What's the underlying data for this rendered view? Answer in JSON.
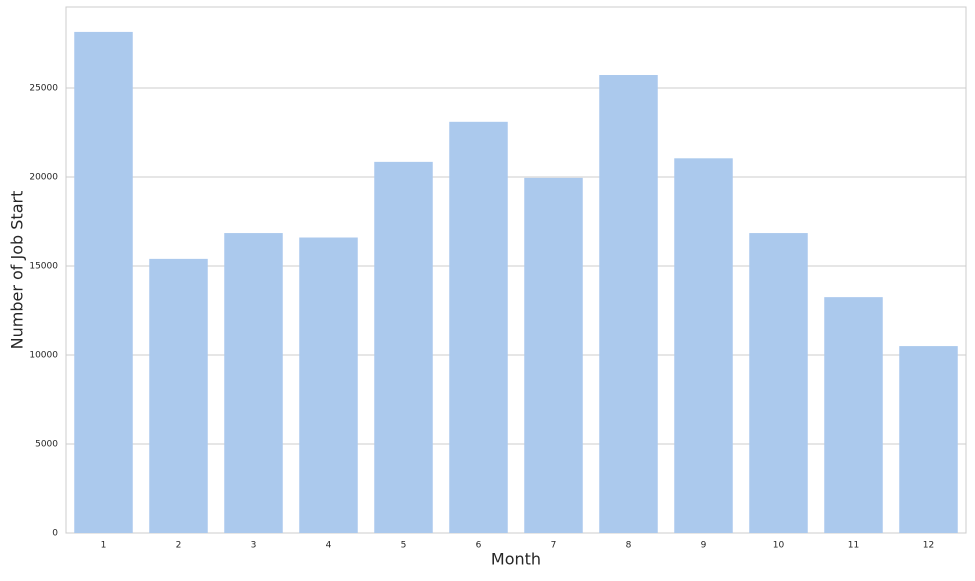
{
  "chart_data": {
    "type": "bar",
    "x_label": "Month",
    "y_label": "Number of Job Start",
    "categories": [
      "1",
      "2",
      "3",
      "4",
      "5",
      "6",
      "7",
      "8",
      "9",
      "10",
      "11",
      "12"
    ],
    "values": [
      28150,
      15400,
      16850,
      16600,
      20850,
      23100,
      19950,
      25730,
      21050,
      16850,
      13250,
      10500
    ],
    "color": "#abc9ed",
    "ylim": [
      0,
      29550
    ],
    "yticks": [
      0,
      5000,
      10000,
      15000,
      20000,
      25000
    ],
    "grid": true
  }
}
